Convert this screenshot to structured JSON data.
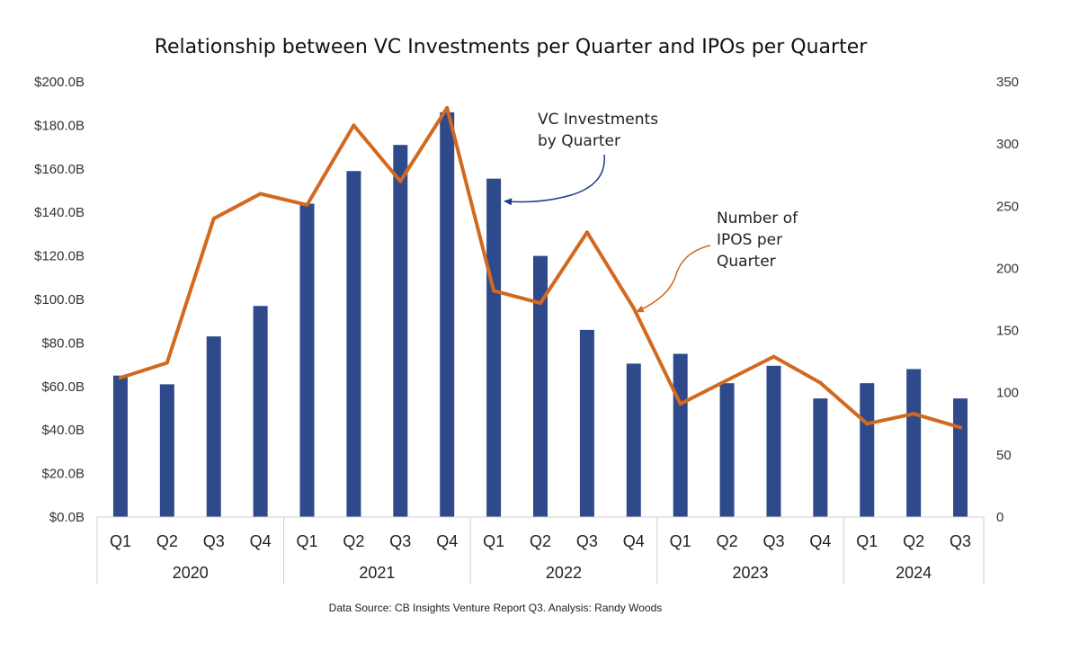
{
  "chart_data": {
    "type": "bar",
    "title": "Relationship between VC Investments per Quarter and IPOs per Quarter",
    "categories": [
      "Q1",
      "Q2",
      "Q3",
      "Q4",
      "Q1",
      "Q2",
      "Q3",
      "Q4",
      "Q1",
      "Q2",
      "Q3",
      "Q4",
      "Q1",
      "Q2",
      "Q3",
      "Q4",
      "Q1",
      "Q2",
      "Q3"
    ],
    "groups": [
      {
        "label": "2020",
        "count": 4
      },
      {
        "label": "2021",
        "count": 4
      },
      {
        "label": "2022",
        "count": 4
      },
      {
        "label": "2023",
        "count": 4
      },
      {
        "label": "2024",
        "count": 3
      }
    ],
    "series": [
      {
        "type": "bar",
        "axis": "left",
        "color": "#2e4a8b",
        "values": [
          65,
          61,
          83,
          97,
          144,
          159,
          171,
          186,
          155.5,
          120,
          86,
          70.5,
          75,
          61.5,
          69.5,
          54.5,
          61.5,
          68,
          54.5
        ]
      },
      {
        "type": "line",
        "axis": "right",
        "color": "#d2691e",
        "values": [
          112,
          124,
          240,
          260,
          251,
          315,
          270,
          329,
          182,
          172,
          229,
          168,
          91,
          110,
          129,
          108,
          75,
          83,
          72
        ]
      }
    ],
    "y_left": {
      "min": 0,
      "max": 200,
      "step": 20,
      "tick_labels": [
        "$0.0B",
        "$20.0B",
        "$40.0B",
        "$60.0B",
        "$80.0B",
        "$100.0B",
        "$120.0B",
        "$140.0B",
        "$160.0B",
        "$180.0B",
        "$200.0B"
      ]
    },
    "y_right": {
      "min": 0,
      "max": 350,
      "step": 50,
      "tick_labels": [
        "0",
        "50",
        "100",
        "150",
        "200",
        "250",
        "300",
        "350"
      ]
    },
    "annotations": [
      {
        "lines": [
          "VC Investments",
          "by Quarter"
        ],
        "color": "#1f3a8a",
        "points_to_index": 8,
        "series": 0
      },
      {
        "lines": [
          "Number of",
          "IPOS per",
          "Quarter"
        ],
        "color": "#d2691e",
        "points_to_index": 11,
        "series": 1
      }
    ],
    "grid": false,
    "source": "Data Source: CB Insights Venture Report Q3.  Analysis: Randy Woods"
  }
}
